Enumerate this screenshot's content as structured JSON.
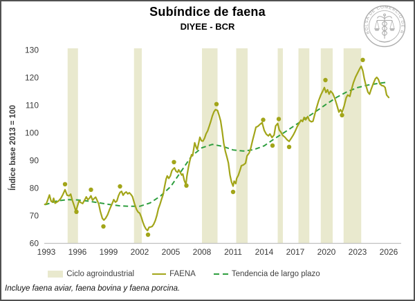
{
  "header": {
    "title": "Subíndice de faena",
    "subtitle": "DIYEE - BCR",
    "logo_text": "BOLSA DE COMERCIO DE ROSARIO"
  },
  "footnote": "Incluye faena aviar, faena bovina y faena porcina.",
  "chart_data": {
    "type": "line",
    "title": "Subíndice de faena",
    "subtitle": "DIYEE - BCR",
    "xlabel": "",
    "ylabel": "Índice base 2013 = 100",
    "ylim": [
      60,
      130
    ],
    "yticks": [
      60,
      70,
      80,
      90,
      100,
      110,
      120,
      130
    ],
    "xticks": [
      1993,
      1996,
      1999,
      2002,
      2005,
      2008,
      2011,
      2014,
      2017,
      2020,
      2023,
      2026
    ],
    "xlim": [
      1992.8,
      2027.2
    ],
    "grid": false,
    "legend_position": "bottom",
    "legend": [
      {
        "label": "Ciclo agroindustrial"
      },
      {
        "label": "FAENA"
      },
      {
        "label": "Tendencia de largo plazo"
      }
    ],
    "bands": {
      "label": "Ciclo agroindustrial",
      "color": "#e9e9ce",
      "ranges": [
        [
          1995.05,
          1996.05
        ],
        [
          2001.45,
          2002.2
        ],
        [
          2008.0,
          2009.5
        ],
        [
          2011.3,
          2012.4
        ],
        [
          2015.3,
          2015.8
        ],
        [
          2017.3,
          2018.35
        ],
        [
          2019.45,
          2020.6
        ],
        [
          2021.65,
          2023.35
        ]
      ]
    },
    "style": {
      "axis_color": "#bfbfbf",
      "tick_color": "#3a3a3a",
      "border_color": "#515151",
      "logo_color": "#a8a8a8"
    },
    "series": [
      {
        "name": "FAENA",
        "type": "line",
        "color": "#a2a519",
        "points": [
          [
            1992.85,
            74.0
          ],
          [
            1993.0,
            74.2
          ],
          [
            1993.15,
            75.8
          ],
          [
            1993.3,
            77.4
          ],
          [
            1993.45,
            75.2
          ],
          [
            1993.6,
            74.8
          ],
          [
            1993.7,
            76.2
          ],
          [
            1993.85,
            74.4
          ],
          [
            1994.0,
            74.8
          ],
          [
            1994.2,
            75.3
          ],
          [
            1994.4,
            76.2
          ],
          [
            1994.6,
            77.6
          ],
          [
            1994.8,
            79.3
          ],
          [
            1995.0,
            77.3
          ],
          [
            1995.2,
            77.1
          ],
          [
            1995.35,
            77.7
          ],
          [
            1995.5,
            75.5
          ],
          [
            1995.7,
            73.3
          ],
          [
            1995.85,
            71.5
          ],
          [
            1996.05,
            74.0
          ],
          [
            1996.15,
            75.3
          ],
          [
            1996.3,
            74.7
          ],
          [
            1996.5,
            74.3
          ],
          [
            1996.7,
            75.6
          ],
          [
            1996.85,
            76.7
          ],
          [
            1997.0,
            75.7
          ],
          [
            1997.15,
            76.2
          ],
          [
            1997.3,
            77.1
          ],
          [
            1997.45,
            75.5
          ],
          [
            1997.6,
            76.1
          ],
          [
            1997.75,
            76.6
          ],
          [
            1997.9,
            75.4
          ],
          [
            1998.05,
            74.2
          ],
          [
            1998.2,
            71.5
          ],
          [
            1998.4,
            68.9
          ],
          [
            1998.55,
            68.3
          ],
          [
            1998.7,
            68.9
          ],
          [
            1998.9,
            70.2
          ],
          [
            1999.1,
            72.2
          ],
          [
            1999.3,
            73.9
          ],
          [
            1999.5,
            75.7
          ],
          [
            1999.65,
            74.8
          ],
          [
            1999.8,
            75.2
          ],
          [
            1999.95,
            77.1
          ],
          [
            2000.1,
            78.3
          ],
          [
            2000.25,
            78.7
          ],
          [
            2000.4,
            77.3
          ],
          [
            2000.55,
            78.1
          ],
          [
            2000.7,
            78.5
          ],
          [
            2000.85,
            77.8
          ],
          [
            2001.0,
            78.2
          ],
          [
            2001.15,
            77.6
          ],
          [
            2001.3,
            76.8
          ],
          [
            2001.5,
            74.2
          ],
          [
            2001.7,
            72.1
          ],
          [
            2001.85,
            71.2
          ],
          [
            2002.0,
            70.8
          ],
          [
            2002.15,
            69.4
          ],
          [
            2002.3,
            67.6
          ],
          [
            2002.45,
            66.1
          ],
          [
            2002.6,
            65.1
          ],
          [
            2002.75,
            64.5
          ],
          [
            2002.9,
            65.7
          ],
          [
            2003.05,
            65.8
          ],
          [
            2003.2,
            66.0
          ],
          [
            2003.35,
            66.8
          ],
          [
            2003.5,
            68.1
          ],
          [
            2003.65,
            70.0
          ],
          [
            2003.8,
            72.4
          ],
          [
            2003.95,
            74.0
          ],
          [
            2004.1,
            75.8
          ],
          [
            2004.25,
            77.5
          ],
          [
            2004.4,
            80.5
          ],
          [
            2004.55,
            83.2
          ],
          [
            2004.65,
            84.3
          ],
          [
            2004.8,
            83.4
          ],
          [
            2004.95,
            84.3
          ],
          [
            2005.1,
            86.2
          ],
          [
            2005.25,
            86.9
          ],
          [
            2005.35,
            87.2
          ],
          [
            2005.5,
            86.0
          ],
          [
            2005.65,
            85.6
          ],
          [
            2005.75,
            86.5
          ],
          [
            2005.9,
            85.6
          ],
          [
            2006.05,
            84.6
          ],
          [
            2006.15,
            85.0
          ],
          [
            2006.3,
            82.6
          ],
          [
            2006.45,
            81.2
          ],
          [
            2006.55,
            84.2
          ],
          [
            2006.7,
            87.5
          ],
          [
            2006.85,
            90.1
          ],
          [
            2007.0,
            92.0
          ],
          [
            2007.1,
            91.6
          ],
          [
            2007.3,
            96.3
          ],
          [
            2007.45,
            94.6
          ],
          [
            2007.55,
            93.9
          ],
          [
            2007.7,
            96.5
          ],
          [
            2007.8,
            98.3
          ],
          [
            2007.95,
            97.0
          ],
          [
            2008.1,
            96.9
          ],
          [
            2008.25,
            98.0
          ],
          [
            2008.4,
            99.6
          ],
          [
            2008.55,
            100.6
          ],
          [
            2008.7,
            102.3
          ],
          [
            2008.85,
            104.0
          ],
          [
            2009.0,
            106.0
          ],
          [
            2009.15,
            107.5
          ],
          [
            2009.3,
            108.3
          ],
          [
            2009.5,
            108.0
          ],
          [
            2009.65,
            106.2
          ],
          [
            2009.8,
            104.2
          ],
          [
            2009.95,
            100.4
          ],
          [
            2010.1,
            96.1
          ],
          [
            2010.25,
            93.2
          ],
          [
            2010.4,
            91.2
          ],
          [
            2010.55,
            89.0
          ],
          [
            2010.7,
            84.6
          ],
          [
            2010.85,
            82.1
          ],
          [
            2011.0,
            80.6
          ],
          [
            2011.1,
            82.4
          ],
          [
            2011.25,
            81.5
          ],
          [
            2011.35,
            83.4
          ],
          [
            2011.5,
            84.5
          ],
          [
            2011.65,
            86.2
          ],
          [
            2011.8,
            88.0
          ],
          [
            2012.0,
            88.3
          ],
          [
            2012.2,
            88.9
          ],
          [
            2012.35,
            91.6
          ],
          [
            2012.55,
            92.6
          ],
          [
            2012.7,
            94.3
          ],
          [
            2012.9,
            97.5
          ],
          [
            2013.05,
            99.6
          ],
          [
            2013.2,
            101.9
          ],
          [
            2013.4,
            102.3
          ],
          [
            2013.6,
            103.0
          ],
          [
            2013.8,
            103.6
          ],
          [
            2014.0,
            100.8
          ],
          [
            2014.2,
            99.4
          ],
          [
            2014.4,
            98.8
          ],
          [
            2014.55,
            99.5
          ],
          [
            2014.75,
            98.2
          ],
          [
            2014.95,
            99.1
          ],
          [
            2015.1,
            102.4
          ],
          [
            2015.3,
            103.3
          ],
          [
            2015.45,
            100.9
          ],
          [
            2015.6,
            100.2
          ],
          [
            2015.8,
            98.9
          ],
          [
            2016.0,
            98.3
          ],
          [
            2016.2,
            97.4
          ],
          [
            2016.4,
            96.8
          ],
          [
            2016.6,
            97.9
          ],
          [
            2016.8,
            99.1
          ],
          [
            2017.0,
            100.6
          ],
          [
            2017.2,
            102.3
          ],
          [
            2017.4,
            103.6
          ],
          [
            2017.55,
            104.5
          ],
          [
            2017.7,
            104.0
          ],
          [
            2017.85,
            105.5
          ],
          [
            2018.0,
            104.6
          ],
          [
            2018.2,
            105.8
          ],
          [
            2018.35,
            104.4
          ],
          [
            2018.55,
            103.9
          ],
          [
            2018.7,
            104.1
          ],
          [
            2018.85,
            106.2
          ],
          [
            2019.05,
            109.0
          ],
          [
            2019.25,
            111.6
          ],
          [
            2019.45,
            113.6
          ],
          [
            2019.65,
            115.1
          ],
          [
            2019.8,
            116.3
          ],
          [
            2019.95,
            114.5
          ],
          [
            2020.1,
            115.5
          ],
          [
            2020.25,
            113.9
          ],
          [
            2020.4,
            115.0
          ],
          [
            2020.6,
            114.2
          ],
          [
            2020.8,
            112.4
          ],
          [
            2021.0,
            110.0
          ],
          [
            2021.2,
            107.4
          ],
          [
            2021.35,
            108.3
          ],
          [
            2021.5,
            107.3
          ],
          [
            2021.7,
            109.6
          ],
          [
            2021.9,
            112.6
          ],
          [
            2022.05,
            113.6
          ],
          [
            2022.25,
            113.1
          ],
          [
            2022.4,
            115.4
          ],
          [
            2022.6,
            118.1
          ],
          [
            2022.8,
            120.1
          ],
          [
            2023.0,
            121.6
          ],
          [
            2023.2,
            123.1
          ],
          [
            2023.35,
            124.0
          ],
          [
            2023.5,
            122.4
          ],
          [
            2023.65,
            119.4
          ],
          [
            2023.8,
            117.1
          ],
          [
            2024.0,
            114.6
          ],
          [
            2024.15,
            113.9
          ],
          [
            2024.3,
            115.6
          ],
          [
            2024.5,
            117.6
          ],
          [
            2024.7,
            119.4
          ],
          [
            2024.85,
            120.0
          ],
          [
            2025.0,
            119.3
          ],
          [
            2025.15,
            117.6
          ],
          [
            2025.35,
            117.0
          ],
          [
            2025.5,
            116.9
          ],
          [
            2025.65,
            116.3
          ],
          [
            2025.8,
            113.6
          ],
          [
            2026.0,
            112.7
          ]
        ]
      },
      {
        "name": "Tendencia de largo plazo",
        "type": "line-dashed",
        "color": "#2e9e3e",
        "points": [
          [
            1992.85,
            73.9
          ],
          [
            1993,
            74.0
          ],
          [
            1994,
            75.2
          ],
          [
            1995,
            75.7
          ],
          [
            1996,
            75.6
          ],
          [
            1997,
            75.2
          ],
          [
            1998,
            74.6
          ],
          [
            1999,
            74.0
          ],
          [
            2000,
            73.5
          ],
          [
            2001,
            73.3
          ],
          [
            2002,
            73.3
          ],
          [
            2003,
            74.5
          ],
          [
            2004,
            77.0
          ],
          [
            2005,
            80.5
          ],
          [
            2006,
            86.0
          ],
          [
            2007,
            91.5
          ],
          [
            2008,
            94.5
          ],
          [
            2009,
            95.7
          ],
          [
            2010,
            95.0
          ],
          [
            2011,
            93.7
          ],
          [
            2012,
            93.3
          ],
          [
            2013,
            93.8
          ],
          [
            2014,
            95.2
          ],
          [
            2015,
            97.8
          ],
          [
            2016,
            100.2
          ],
          [
            2017,
            102.7
          ],
          [
            2018,
            105.2
          ],
          [
            2019,
            107.7
          ],
          [
            2020,
            110.3
          ],
          [
            2021,
            112.8
          ],
          [
            2022,
            114.8
          ],
          [
            2023,
            116.3
          ],
          [
            2024,
            117.2
          ],
          [
            2025,
            117.8
          ],
          [
            2025.8,
            118.2
          ]
        ]
      },
      {
        "name": "puntos-de-giro-del-ciclo",
        "type": "scatter",
        "color": "#a2a519",
        "points": [
          [
            1994.8,
            81.3
          ],
          [
            1995.9,
            71.3
          ],
          [
            1997.3,
            79.3
          ],
          [
            1998.5,
            66.0
          ],
          [
            2000.1,
            80.5
          ],
          [
            2002.8,
            63.0
          ],
          [
            2005.3,
            89.3
          ],
          [
            2006.5,
            80.8
          ],
          [
            2009.4,
            110.3
          ],
          [
            2011.0,
            78.5
          ],
          [
            2013.9,
            104.6
          ],
          [
            2014.8,
            95.3
          ],
          [
            2015.4,
            104.9
          ],
          [
            2016.4,
            94.8
          ],
          [
            2019.9,
            119.0
          ],
          [
            2021.5,
            106.3
          ],
          [
            2023.5,
            126.3
          ]
        ]
      }
    ]
  }
}
